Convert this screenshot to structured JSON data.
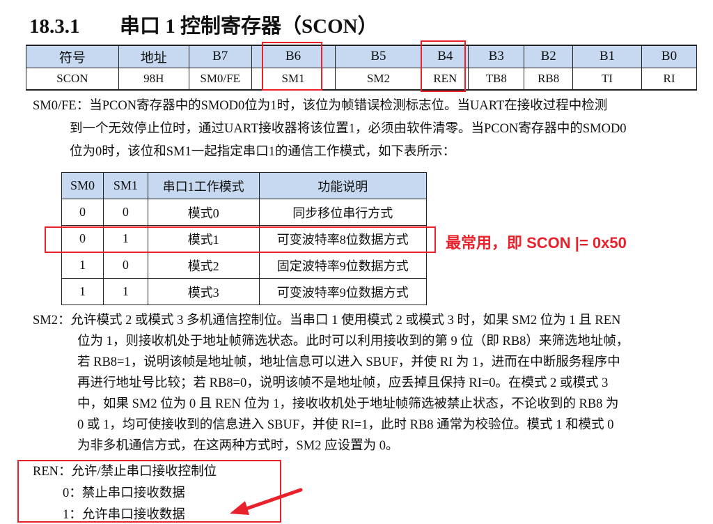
{
  "title": {
    "number": "18.3.1",
    "text": "串口 1 控制寄存器（SCON）"
  },
  "register_table": {
    "headers": [
      "符号",
      "地址",
      "B7",
      "B6",
      "B5",
      "B4",
      "B3",
      "B2",
      "B1",
      "B0"
    ],
    "values": [
      "SCON",
      "98H",
      "SM0/FE",
      "SM1",
      "SM2",
      "REN",
      "TB8",
      "RB8",
      "TI",
      "RI"
    ]
  },
  "sm0fe": {
    "lines": [
      "SM0/FE：当PCON寄存器中的SMOD0位为1时，该位为帧错误检测标志位。当UART在接收过程中检测",
      "到一个无效停止位时，通过UART接收器将该位置1，必须由软件清零。当PCON寄存器中的SMOD0",
      "位为0时，该位和SM1一起指定串口1的通信工作模式，如下表所示："
    ]
  },
  "mode_table": {
    "headers": [
      "SM0",
      "SM1",
      "串口1工作模式",
      "功能说明"
    ],
    "rows": [
      [
        "0",
        "0",
        "模式0",
        "同步移位串行方式"
      ],
      [
        "0",
        "1",
        "模式1",
        "可变波特率8位数据方式"
      ],
      [
        "1",
        "0",
        "模式2",
        "固定波特率9位数据方式"
      ],
      [
        "1",
        "1",
        "模式3",
        "可变波特率9位数据方式"
      ]
    ]
  },
  "annotation": {
    "text": "最常用，即 SCON |= 0x50",
    "color": "#e8212b"
  },
  "sm2": {
    "lines": [
      "SM2：允许模式 2 或模式 3 多机通信控制位。当串口 1 使用模式 2 或模式 3 时，如果 SM2 位为 1 且 REN",
      "位为 1，则接收机处于地址帧筛选状态。此时可以利用接收到的第 9 位（即 RB8）来筛选地址帧，",
      "若 RB8=1，说明该帧是地址帧，地址信息可以进入 SBUF，并使 RI 为 1，进而在中断服务程序中",
      "再进行地址号比较；若 RB8=0，说明该帧不是地址帧，应丢掉且保持 RI=0。在模式 2 或模式 3",
      "中，如果 SM2 位为 0 且 REN 位为 1，接收收机处于地址帧筛选被禁止状态，不论收到的 RB8 为",
      "0 或 1，均可使接收到的信息进入 SBUF，并使 RI=1，此时 RB8 通常为校验位。模式 1 和模式 0",
      "为非多机通信方式，在这两种方式时，SM2 应设置为 0。"
    ]
  },
  "ren": {
    "lines": [
      "REN：允许/禁止串口接收控制位",
      "0：禁止串口接收数据",
      "1：允许串口接收数据"
    ]
  }
}
